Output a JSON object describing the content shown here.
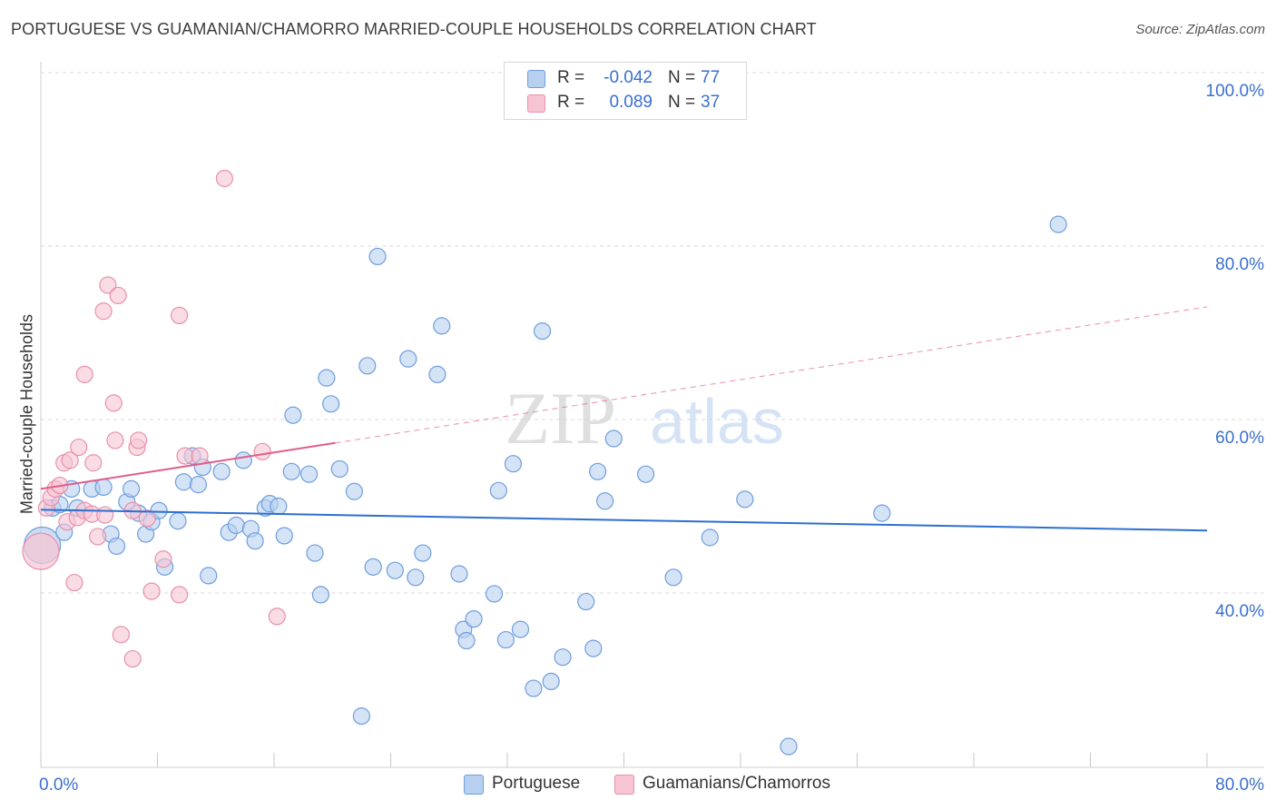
{
  "title": "PORTUGUESE VS GUAMANIAN/CHAMORRO MARRIED-COUPLE HOUSEHOLDS CORRELATION CHART",
  "source": "Source: ZipAtlas.com",
  "legend": {
    "series1": {
      "r_label": "R =",
      "r_value": "-0.042",
      "n_label": "N =",
      "n_value": "77"
    },
    "series2": {
      "r_label": "R =",
      "r_value": "0.089",
      "n_label": "N =",
      "n_value": "37"
    }
  },
  "bottom_legend": {
    "series1": "Portuguese",
    "series2": "Guamanians/Chamorros"
  },
  "watermark": {
    "zip": "ZIP",
    "atlas": "atlas"
  },
  "colors": {
    "blue_fill": "#b8d0f0",
    "blue_stroke": "#6f9ede",
    "blue_line": "#2e6fcf",
    "pink_fill": "#f7c4d3",
    "pink_stroke": "#e891ab",
    "pink_line": "#e05e8a",
    "axis_text": "#3a6fd0",
    "grid": "#d9d9d9"
  },
  "chart_data": {
    "type": "scatter",
    "title": "PORTUGUESE VS GUAMANIAN/CHAMORRO MARRIED-COUPLE HOUSEHOLDS CORRELATION CHART",
    "xlabel": "",
    "ylabel": "Married-couple Households",
    "xlim": [
      0,
      80
    ],
    "ylim": [
      20,
      102
    ],
    "x_tick_labels": [
      "0.0%",
      "80.0%"
    ],
    "y_ticks": [
      40,
      60,
      80,
      100
    ],
    "y_tick_labels": [
      "40.0%",
      "60.0%",
      "80.0%",
      "100.0%"
    ],
    "grid": true,
    "legend_position": "top-center",
    "series": [
      {
        "name": "Portuguese",
        "r": -0.042,
        "n": 77,
        "trend": {
          "x": [
            0,
            80
          ],
          "y": [
            49.6,
            47.2
          ],
          "style": "solid"
        },
        "points": [
          [
            0.1,
            45.5,
            "large"
          ],
          [
            0.8,
            49.8
          ],
          [
            1.3,
            50.2
          ],
          [
            1.6,
            47.0
          ],
          [
            2.1,
            52.0
          ],
          [
            2.5,
            49.8
          ],
          [
            3.5,
            52.0
          ],
          [
            4.3,
            52.2
          ],
          [
            4.8,
            46.8
          ],
          [
            5.2,
            45.4
          ],
          [
            5.9,
            50.5
          ],
          [
            6.2,
            52.0
          ],
          [
            6.7,
            49.2
          ],
          [
            7.2,
            46.8
          ],
          [
            7.6,
            48.2
          ],
          [
            8.1,
            49.5
          ],
          [
            8.5,
            43.0
          ],
          [
            9.4,
            48.3
          ],
          [
            9.8,
            52.8
          ],
          [
            10.4,
            55.8
          ],
          [
            10.8,
            52.5
          ],
          [
            11.1,
            54.5
          ],
          [
            11.5,
            42.0
          ],
          [
            12.4,
            54.0
          ],
          [
            12.9,
            47.0
          ],
          [
            13.4,
            47.8
          ],
          [
            13.9,
            55.3
          ],
          [
            14.4,
            47.4
          ],
          [
            14.7,
            46.0
          ],
          [
            15.4,
            49.8
          ],
          [
            15.7,
            50.3
          ],
          [
            16.3,
            50.0
          ],
          [
            16.7,
            46.6
          ],
          [
            17.2,
            54.0
          ],
          [
            18.4,
            53.7
          ],
          [
            18.8,
            44.6
          ],
          [
            19.2,
            39.8
          ],
          [
            19.6,
            64.8
          ],
          [
            19.9,
            61.8
          ],
          [
            20.5,
            54.3
          ],
          [
            21.5,
            51.7
          ],
          [
            22.4,
            66.2
          ],
          [
            22.8,
            43.0
          ],
          [
            23.1,
            78.8
          ],
          [
            24.3,
            42.6
          ],
          [
            25.2,
            67.0
          ],
          [
            25.7,
            41.8
          ],
          [
            26.2,
            44.6
          ],
          [
            27.2,
            65.2
          ],
          [
            27.5,
            70.8
          ],
          [
            28.7,
            42.2
          ],
          [
            29.0,
            35.8
          ],
          [
            29.2,
            34.5
          ],
          [
            29.7,
            37.0
          ],
          [
            31.1,
            39.9
          ],
          [
            31.4,
            51.8
          ],
          [
            31.9,
            34.6
          ],
          [
            32.4,
            54.9
          ],
          [
            32.9,
            35.8
          ],
          [
            33.8,
            29.0
          ],
          [
            34.4,
            70.2
          ],
          [
            35.0,
            29.8
          ],
          [
            35.8,
            32.6
          ],
          [
            37.4,
            39.0
          ],
          [
            37.9,
            33.6
          ],
          [
            38.2,
            54.0
          ],
          [
            38.7,
            50.6
          ],
          [
            39.3,
            57.8
          ],
          [
            41.5,
            53.7
          ],
          [
            43.4,
            41.8
          ],
          [
            45.9,
            46.4
          ],
          [
            48.3,
            50.8
          ],
          [
            51.3,
            22.3
          ],
          [
            57.7,
            49.2
          ],
          [
            69.8,
            82.5
          ],
          [
            22.0,
            25.8
          ],
          [
            17.3,
            60.5
          ]
        ]
      },
      {
        "name": "Guamanians/Chamorros",
        "r": 0.089,
        "n": 37,
        "trend": {
          "x": [
            0,
            20.2,
            80
          ],
          "y": [
            52.0,
            57.3,
            73.0
          ],
          "style": "solid-then-dashed"
        },
        "points": [
          [
            0.0,
            44.8,
            "large"
          ],
          [
            0.4,
            49.8
          ],
          [
            0.7,
            51.0
          ],
          [
            1.0,
            52.0
          ],
          [
            1.3,
            52.4
          ],
          [
            1.6,
            55.0
          ],
          [
            1.8,
            48.2
          ],
          [
            2.0,
            55.3
          ],
          [
            2.3,
            41.2
          ],
          [
            2.5,
            48.7
          ],
          [
            2.6,
            56.8
          ],
          [
            3.0,
            49.5
          ],
          [
            3.0,
            65.2
          ],
          [
            3.5,
            49.1
          ],
          [
            3.6,
            55.0
          ],
          [
            3.9,
            46.5
          ],
          [
            4.3,
            72.5
          ],
          [
            4.4,
            49.0
          ],
          [
            4.6,
            75.5
          ],
          [
            5.0,
            61.9
          ],
          [
            5.1,
            57.6
          ],
          [
            5.3,
            74.3
          ],
          [
            5.5,
            35.2
          ],
          [
            6.3,
            49.5
          ],
          [
            6.3,
            32.4
          ],
          [
            6.6,
            56.8
          ],
          [
            6.7,
            57.6
          ],
          [
            7.3,
            48.6
          ],
          [
            7.6,
            40.2
          ],
          [
            8.4,
            43.9
          ],
          [
            9.5,
            72.0
          ],
          [
            9.5,
            39.8
          ],
          [
            9.9,
            55.8
          ],
          [
            10.9,
            55.8
          ],
          [
            12.6,
            87.8
          ],
          [
            15.2,
            56.3
          ],
          [
            16.2,
            37.3
          ]
        ]
      }
    ]
  }
}
